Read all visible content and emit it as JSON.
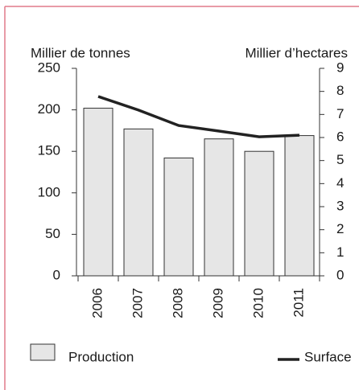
{
  "chart_data": {
    "type": "bar",
    "y_label": "Millier de tonnes",
    "y2_label": "Millier d’hectares",
    "categories": [
      "2006",
      "2007",
      "2008",
      "2009",
      "2010",
      "2011"
    ],
    "series": [
      {
        "name": "Production",
        "type": "bar",
        "color": "#e6e6e6",
        "values": [
          202,
          177,
          142,
          165,
          150,
          169
        ]
      },
      {
        "name": "Surface",
        "type": "line",
        "axis": "y2",
        "color": "#222222",
        "values": [
          7.78,
          7.19,
          6.52,
          6.28,
          6.03,
          6.1
        ]
      }
    ],
    "ylim": [
      0,
      250
    ],
    "yticks": [
      0,
      50,
      100,
      150,
      200,
      250
    ],
    "y2lim": [
      0,
      9
    ],
    "y2ticks": [
      0,
      1,
      2,
      3,
      4,
      5,
      6,
      7,
      8,
      9
    ]
  }
}
